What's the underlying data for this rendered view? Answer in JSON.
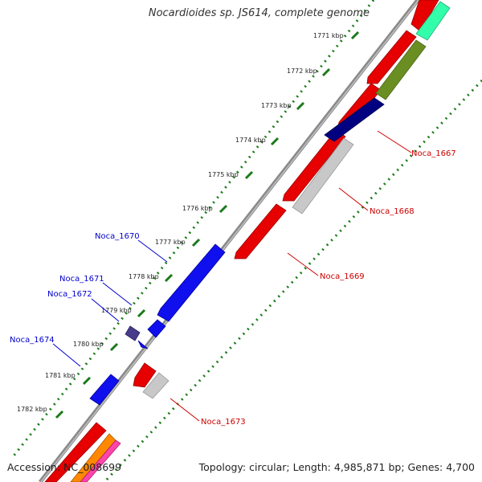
{
  "title": "Nocardioides sp. JS614, complete genome",
  "footer": {
    "accession": "Accession: NC_008699",
    "summary": "Topology: circular; Length: 4,985,871 bp; Genes: 4,700"
  },
  "ticks": [
    "1771 kbp",
    "1772 kbp",
    "1773 kbp",
    "1774 kbp",
    "1775 kbp",
    "1776 kbp",
    "1777 kbp",
    "1778 kbp",
    "1779 kbp",
    "1780 kbp",
    "1781 kbp",
    "1782 kbp"
  ],
  "genes_forward": [
    {
      "label": "Noca_1667",
      "color": "#cc0000"
    },
    {
      "label": "Noca_1668",
      "color": "#cc0000"
    },
    {
      "label": "Noca_1669",
      "color": "#cc0000"
    },
    {
      "label": "Noca_1673",
      "color": "#cc0000"
    }
  ],
  "genes_reverse": [
    {
      "label": "Noca_1670",
      "color": "#0000cc"
    },
    {
      "label": "Noca_1671",
      "color": "#0000cc"
    },
    {
      "label": "Noca_1672",
      "color": "#0000cc"
    },
    {
      "label": "Noca_1674",
      "color": "#0000cc"
    }
  ],
  "colors": {
    "forward_strand": "#ff0000",
    "reverse_strand": "#0000ff",
    "backbone": "#777777",
    "gc_dots": "#1a7a1a",
    "gene_gray": "#c8c8c8",
    "navy": "#000080",
    "olive": "#6b8e23",
    "aqua": "#33ffaa",
    "slate": "#483d8b"
  }
}
